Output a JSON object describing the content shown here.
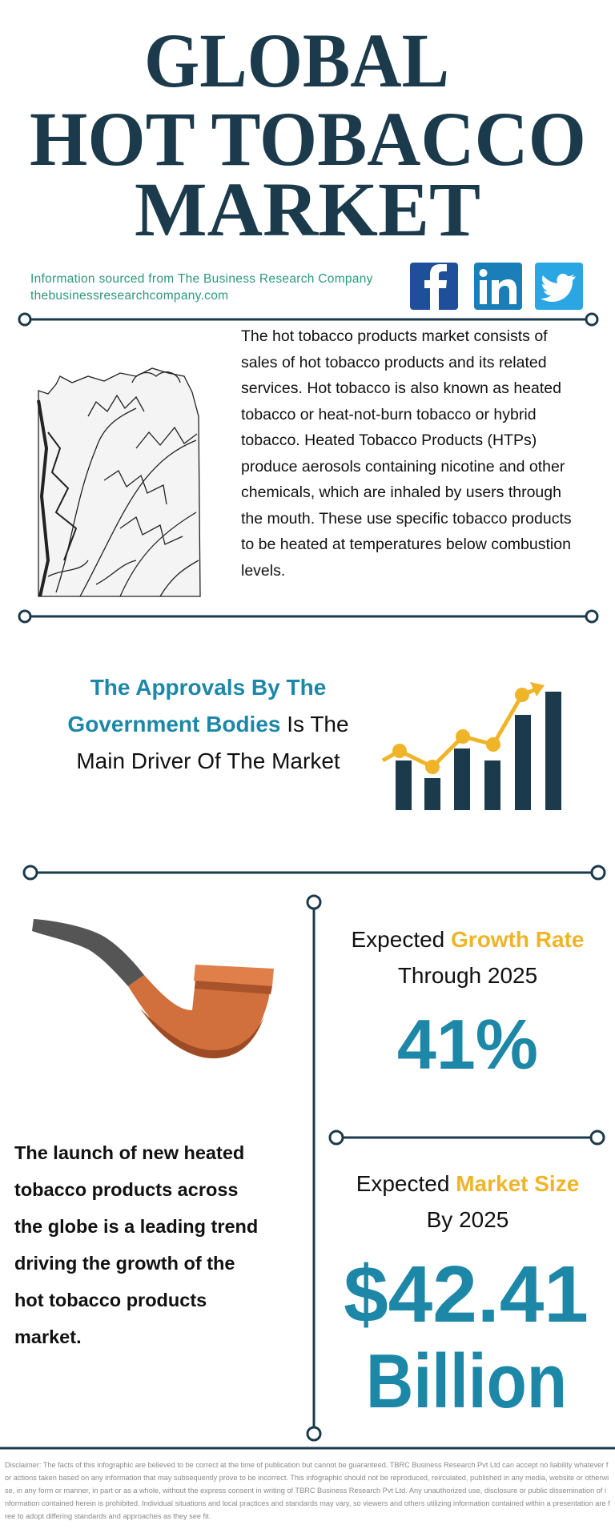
{
  "header": {
    "title_lines": [
      "GLOBAL",
      "HOT TOBACCO",
      "MARKET"
    ],
    "source": "Information sourced from The Business Research Company",
    "website": "thebusinessresearchcompany.com"
  },
  "intro": {
    "text": "The hot tobacco products market consists of sales of hot tobacco products and its related services. Hot tobacco is also known as heated tobacco or heat-not-burn tobacco or hybrid tobacco. Heated Tobacco Products (HTPs) produce aerosols containing nicotine and other chemicals, which are inhaled by users through the mouth. These use specific tobacco products to be heated at temperatures below combustion levels."
  },
  "driver": {
    "line1": "The Approvals By The",
    "line2_highlight": "Government Bodies",
    "line2_rest": "Is The",
    "line3": "Main Driver Of The Market"
  },
  "trend": {
    "lines": [
      "The launch of new heated",
      "tobacco products across",
      "the globe is a leading trend",
      "driving the growth of the",
      "hot tobacco products",
      "market."
    ]
  },
  "growth": {
    "label": "Expected",
    "highlight": "Growth Rate",
    "period": "Through 2025",
    "value": "41%"
  },
  "market_size": {
    "label": "Expected",
    "highlight": "Market Size",
    "period": "By 2025",
    "value": "$42.41",
    "unit": "Billion"
  },
  "disclaimer": "Disclaimer: The facts of this infographic are believed to be correct at the time of publication but cannot be guaranteed. TBRC Business Research Pvt Ltd can accept no liability whatever for actions taken based on any information that may subsequently prove to be incorrect. This infographic should not be reproduced, reirculated, published in any media, website or otherwise, in any form or manner, in part or as a whole, without the express consent in writing of TBRC Business Research Pvt Ltd. Any unauthorized use, disclosure or public dissemination of information contained herein is prohibited. Individual situations and local practices and standards may vary, so viewers and others utilizing information contained within a presentation are free to adopt differing standards and approaches as they see fit."
}
